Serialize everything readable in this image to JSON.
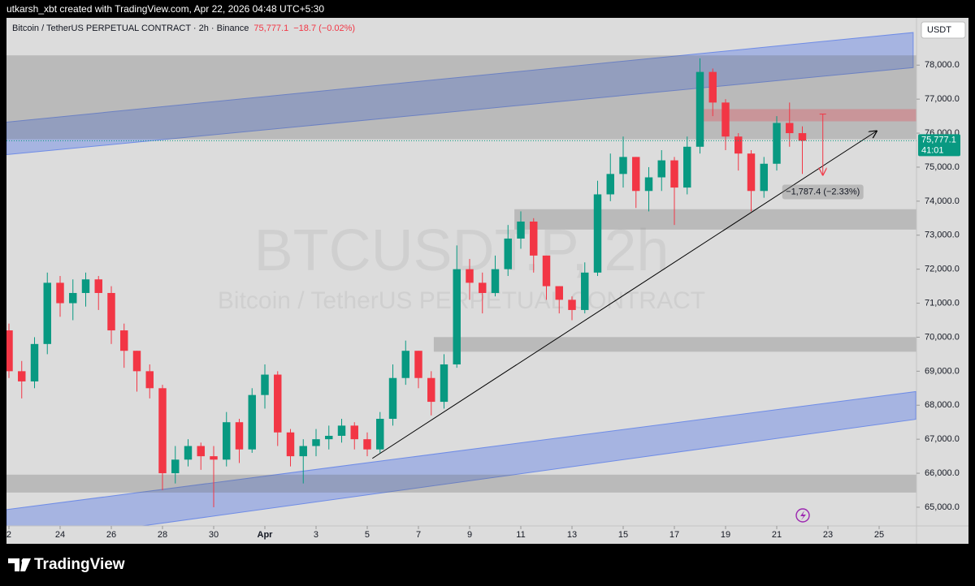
{
  "header": {
    "credit": "utkarsh_xbt created with TradingView.com, Apr 22, 2026 04:48 UTC+5:30"
  },
  "chart_data": {
    "type": "candlestick",
    "title": "Bitcoin / TetherUS PERPETUAL CONTRACT · 2h · Binance",
    "change_text": "−18.7 (−0.02%)",
    "currency": "USDT",
    "watermark": [
      "BTCUSDT.P, 2h",
      "Bitcoin / TetherUS PERPETUAL CONTRACT"
    ],
    "up_color": "#089981",
    "down_color": "#f23645",
    "x": [
      0,
      0.5,
      1,
      1.5,
      2,
      2.5,
      3,
      3.5,
      4,
      4.5,
      5,
      5.5,
      6,
      6.5,
      7,
      7.5,
      8,
      8.5,
      9,
      9.5,
      10,
      10.5,
      11,
      11.5,
      12,
      12.5,
      13,
      13.5,
      14,
      14.5,
      15,
      15.5,
      16,
      16.5,
      17,
      17.5,
      18,
      18.5,
      19,
      19.5,
      20,
      20.5,
      21,
      21.5,
      22,
      22.5,
      23,
      23.5,
      24,
      24.5,
      25,
      25.5,
      26,
      26.5,
      27,
      27.5,
      28,
      28.5,
      29,
      29.5,
      30,
      30.5,
      31
    ],
    "open": [
      70200,
      69000,
      68700,
      69800,
      71600,
      71000,
      71300,
      71700,
      71300,
      70200,
      69600,
      69000,
      68500,
      66000,
      66400,
      66800,
      66500,
      66400,
      67500,
      66700,
      68300,
      68900,
      67200,
      66500,
      66800,
      67000,
      67100,
      67400,
      67000,
      66700,
      67600,
      68800,
      69600,
      68800,
      68100,
      69200,
      72000,
      71600,
      71300,
      72000,
      72900,
      73400,
      72400,
      71500,
      71100,
      70800,
      71900,
      74200,
      74800,
      75300,
      74300,
      74700,
      75200,
      74400,
      75600,
      77800,
      76900,
      75900,
      75400,
      74300,
      75100,
      76300,
      76000
    ],
    "high": [
      70400,
      69300,
      70000,
      71900,
      71800,
      71700,
      71900,
      71800,
      71500,
      70400,
      69600,
      69200,
      68600,
      66800,
      67000,
      66900,
      66800,
      67800,
      67600,
      68500,
      69200,
      69000,
      67300,
      67000,
      67300,
      67400,
      67600,
      67500,
      67200,
      67800,
      69200,
      69900,
      69600,
      69000,
      69500,
      72700,
      72300,
      71900,
      72400,
      73300,
      73700,
      73500,
      72400,
      71500,
      71200,
      72200,
      74600,
      75400,
      75900,
      75300,
      75000,
      75500,
      75300,
      75900,
      78200,
      77900,
      77000,
      76000,
      75500,
      75300,
      76500,
      76900,
      76200
    ],
    "low": [
      68800,
      68200,
      68500,
      69500,
      70600,
      70500,
      70900,
      70800,
      69800,
      69100,
      68400,
      68200,
      65500,
      65700,
      66200,
      66100,
      65000,
      66200,
      66300,
      66600,
      67900,
      66800,
      66200,
      65700,
      66500,
      66700,
      66900,
      66700,
      66500,
      66600,
      67400,
      68600,
      68500,
      67700,
      67900,
      69100,
      71100,
      70700,
      71200,
      71800,
      72600,
      71900,
      71100,
      70700,
      70500,
      70700,
      71800,
      74000,
      74400,
      73800,
      73700,
      74300,
      73300,
      74200,
      75400,
      76500,
      75500,
      74900,
      73700,
      74100,
      74900,
      75600,
      74800
    ],
    "close": [
      69000,
      68700,
      69800,
      71600,
      71000,
      71300,
      71700,
      71300,
      70200,
      69600,
      69000,
      68500,
      66000,
      66400,
      66800,
      66500,
      66400,
      67500,
      66700,
      68300,
      68900,
      67200,
      66500,
      66800,
      67000,
      67100,
      67400,
      67000,
      66700,
      67600,
      68800,
      69600,
      68800,
      68100,
      69200,
      72000,
      71600,
      71300,
      72000,
      72900,
      73400,
      72400,
      71500,
      71100,
      70800,
      71900,
      74200,
      74800,
      75300,
      74300,
      74700,
      75200,
      74400,
      75600,
      77800,
      76900,
      75900,
      75400,
      74300,
      75100,
      76300,
      76000,
      75777.1
    ],
    "last_price": {
      "value": 75777.1,
      "label": "75,777.1",
      "countdown": "41:01"
    },
    "xlim": [
      -0.095,
      35.46
    ],
    "xticks": [
      {
        "value": 0,
        "label": "2"
      },
      {
        "value": 2,
        "label": "24"
      },
      {
        "value": 4,
        "label": "26"
      },
      {
        "value": 6,
        "label": "28"
      },
      {
        "value": 8,
        "label": "30"
      },
      {
        "value": 10,
        "label": "Apr"
      },
      {
        "value": 12,
        "label": "3"
      },
      {
        "value": 14,
        "label": "5"
      },
      {
        "value": 16,
        "label": "7"
      },
      {
        "value": 18,
        "label": "9"
      },
      {
        "value": 20,
        "label": "11"
      },
      {
        "value": 22,
        "label": "13"
      },
      {
        "value": 24,
        "label": "15"
      },
      {
        "value": 26,
        "label": "17"
      },
      {
        "value": 28,
        "label": "19"
      },
      {
        "value": 30,
        "label": "21"
      },
      {
        "value": 32,
        "label": "23"
      },
      {
        "value": 34,
        "label": "25"
      }
    ],
    "ylim": [
      64450,
      79390
    ],
    "yticks": [
      {
        "value": 65000,
        "label": "65,000.0"
      },
      {
        "value": 66000,
        "label": "66,000.0"
      },
      {
        "value": 67000,
        "label": "67,000.0"
      },
      {
        "value": 68000,
        "label": "68,000.0"
      },
      {
        "value": 69000,
        "label": "69,000.0"
      },
      {
        "value": 70000,
        "label": "70,000.0"
      },
      {
        "value": 71000,
        "label": "71,000.0"
      },
      {
        "value": 72000,
        "label": "72,000.0"
      },
      {
        "value": 73000,
        "label": "73,000.0"
      },
      {
        "value": 74000,
        "label": "74,000.0"
      },
      {
        "value": 75000,
        "label": "75,000.0"
      },
      {
        "value": 76000,
        "label": "76,000.0"
      },
      {
        "value": 77000,
        "label": "77,000.0"
      },
      {
        "value": 78000,
        "label": "78,000.0"
      }
    ],
    "channels": [
      {
        "x": [
          -0.1,
          35.33
        ],
        "lower": [
          75367,
          77928
        ],
        "upper": [
          76324,
          78958
        ],
        "color": "#6f8ce6"
      },
      {
        "x": [
          -0.1,
          35.43
        ],
        "lower": [
          63900,
          67586
        ],
        "upper": [
          64929,
          68400
        ],
        "color": "#6f8ce6"
      }
    ],
    "zones": [
      {
        "x": [
          -0.1,
          35.46
        ],
        "y": [
          75821,
          78287
        ],
        "color": "#646464"
      },
      {
        "x": [
          19.75,
          35.46
        ],
        "y": [
          73164,
          73763
        ],
        "color": "#646464"
      },
      {
        "x": [
          16.6,
          35.46
        ],
        "y": [
          69573,
          70004
        ],
        "color": "#646464"
      },
      {
        "x": [
          -0.1,
          35.46
        ],
        "y": [
          65431,
          65958
        ],
        "color": "#646464"
      },
      {
        "x": [
          27.1,
          35.46
        ],
        "y": [
          76348,
          76707
        ],
        "color": "#f23645"
      }
    ],
    "trend_line": {
      "x": [
        14.2,
        33.9
      ],
      "y": [
        66437,
        76061
      ]
    },
    "measure": {
      "x": 31.8,
      "from": 76560,
      "to": 74772.6,
      "label": "−1,787.4 (−2.33%)"
    }
  },
  "footer": {
    "brand": "TradingView"
  }
}
